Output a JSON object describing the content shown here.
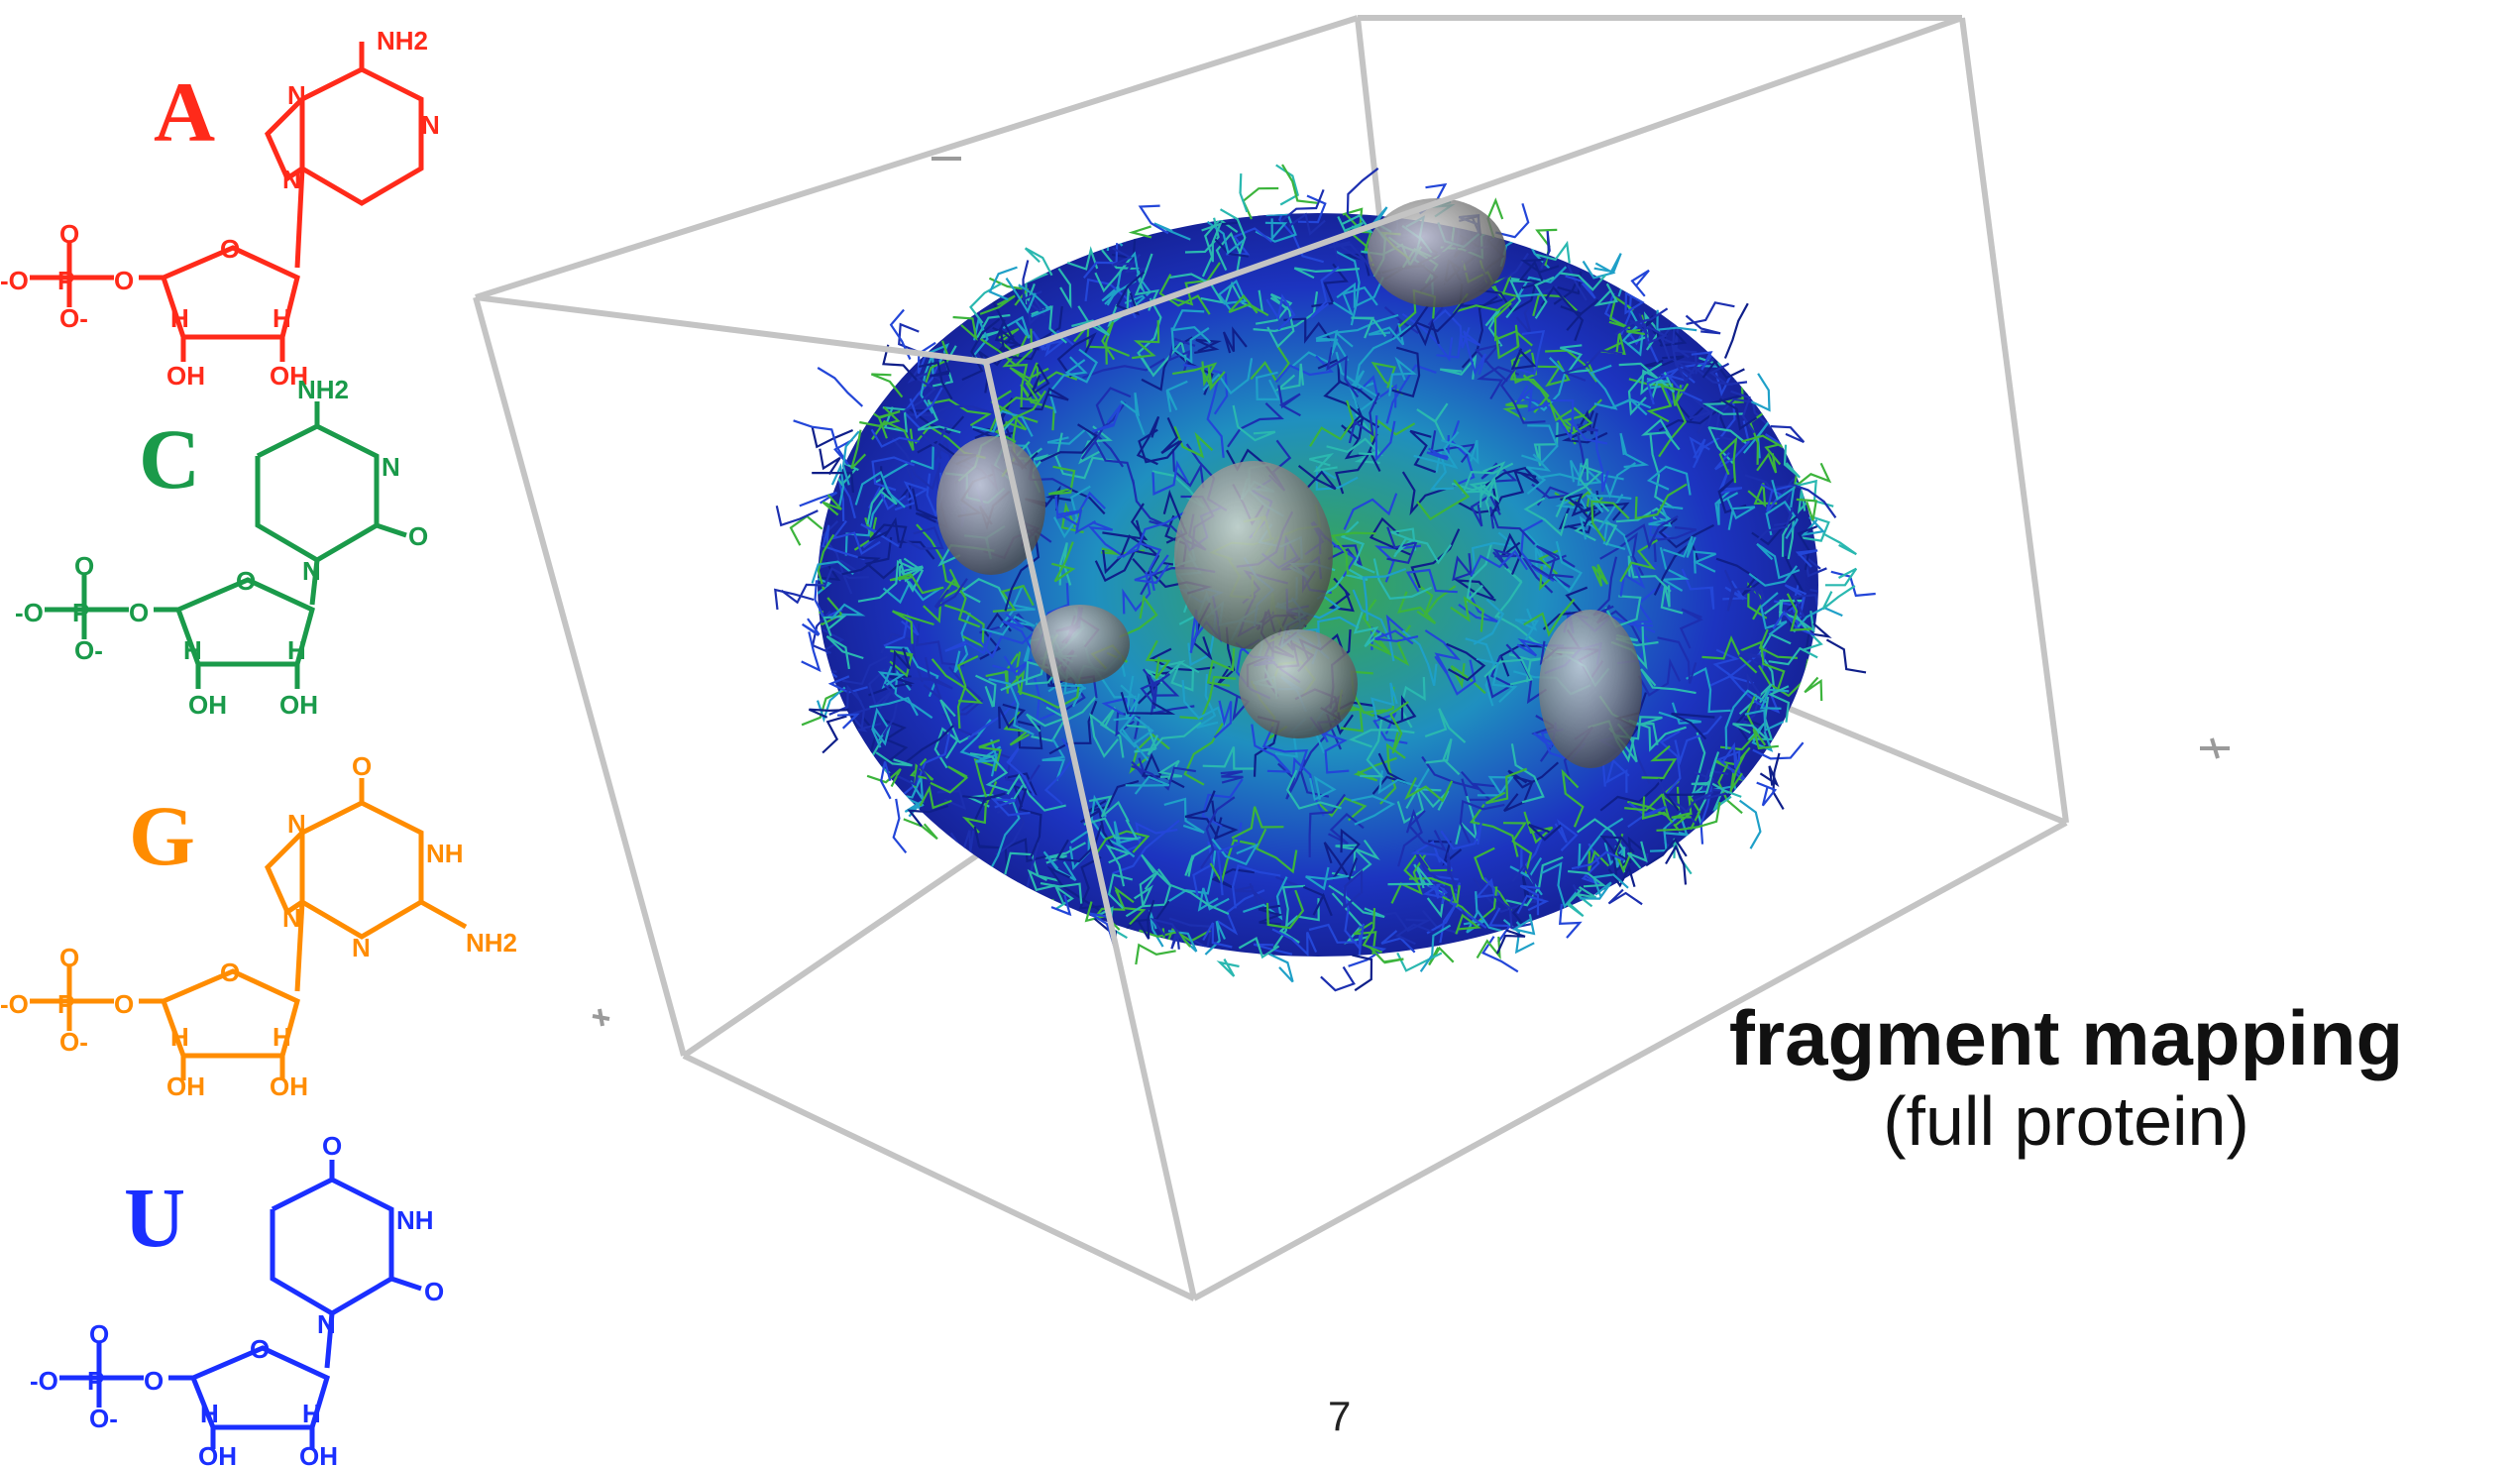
{
  "slide": {
    "page_number": "7",
    "caption": {
      "title": "fragment mapping",
      "subtitle": "(full protein)"
    }
  },
  "nucleotides": [
    {
      "letter": "A",
      "color": "#ff2a1a",
      "labels": {
        "amine": "NH2",
        "ring_n": "N",
        "ring_o": "O",
        "phosphate_p": "P",
        "oxygen": "O",
        "hydroxyl": "OH",
        "hydrogen": "H",
        "neg_o": "-O",
        "o_minus": "O-"
      }
    },
    {
      "letter": "C",
      "color": "#1a9a4a",
      "labels": {
        "amine": "NH2",
        "ring_n": "N",
        "ring_o": "O",
        "phosphate_p": "P",
        "oxygen": "O",
        "hydroxyl": "OH",
        "hydrogen": "H",
        "neg_o": "-O",
        "o_minus": "O-"
      }
    },
    {
      "letter": "G",
      "color": "#ff8c00",
      "labels": {
        "amine": "NH2",
        "nh": "NH",
        "ring_n": "N",
        "ring_o": "O",
        "phosphate_p": "P",
        "oxygen": "O",
        "hydroxyl": "OH",
        "hydrogen": "H",
        "neg_o": "-O",
        "o_minus": "O-"
      }
    },
    {
      "letter": "U",
      "color": "#1a2fff",
      "labels": {
        "nh": "NH",
        "ring_n": "N",
        "ring_o": "O",
        "phosphate_p": "P",
        "oxygen": "O",
        "hydroxyl": "OH",
        "hydrogen": "H",
        "neg_o": "-O",
        "o_minus": "O-"
      }
    }
  ],
  "visual": {
    "box_color": "#c4c4c4",
    "surface_color": "#8a8a8a",
    "mesh_colors": [
      "#1c2fb0",
      "#2346d8",
      "#1fa0c8",
      "#2ab8b0",
      "#3cb43c",
      "#0f1f8a"
    ]
  }
}
